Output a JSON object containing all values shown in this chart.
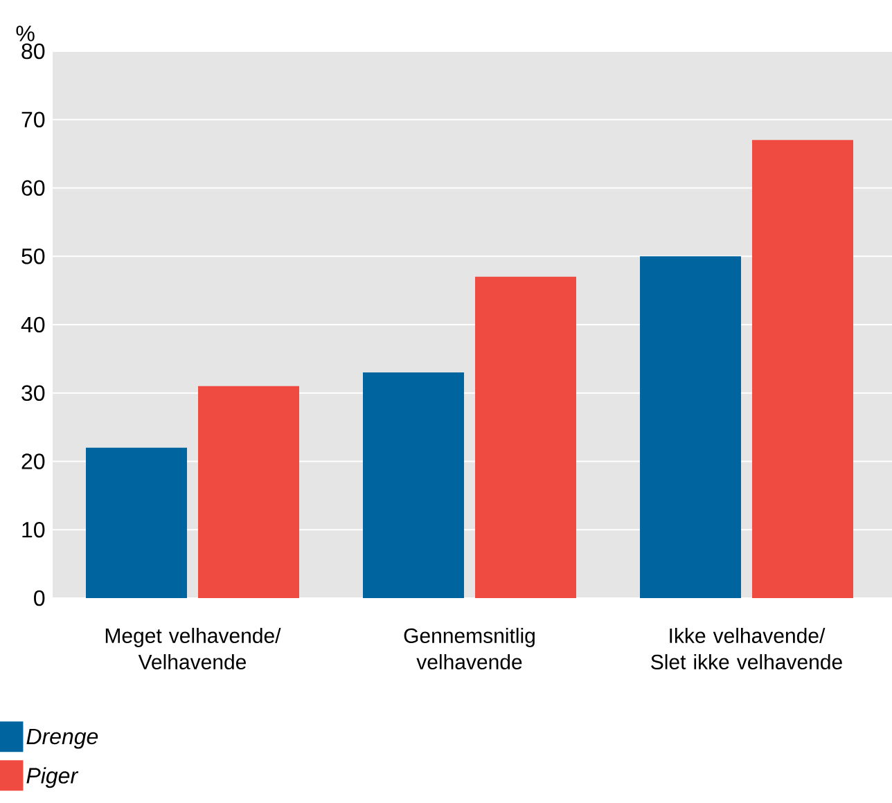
{
  "chart_data": {
    "type": "bar",
    "ylabel": "%",
    "categories": [
      "Meget velhavende/ Velhavende",
      "Gennemsnitlig velhavende",
      "Ikke velhavende/ Slet ikke velhavende"
    ],
    "series": [
      {
        "name": "*Drenge*",
        "color": "#00649e",
        "values": [
          22,
          33,
          50
        ]
      },
      {
        "name": "*Piger*",
        "color": "#ef4b41",
        "values": [
          31,
          47,
          67
        ]
      }
    ],
    "ylim": [
      0,
      80
    ],
    "yticks": [
      0,
      10,
      20,
      30,
      40,
      50,
      60,
      70,
      80
    ],
    "grid": "y",
    "legend": "bottom left"
  }
}
